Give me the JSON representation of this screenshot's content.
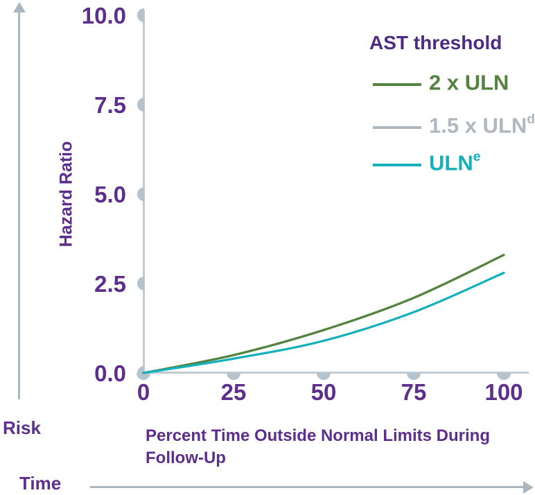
{
  "figure": {
    "risk_label": "Risk",
    "time_label": "Time"
  },
  "colors": {
    "purple": "#5d2e8c",
    "purple-dark": "#4c2b82",
    "axis": "#bfcad2",
    "dot": "#b6c3cd",
    "arrow": "#aab7c1"
  },
  "chart_data": {
    "type": "line",
    "title": "",
    "xlabel": "Percent Time Outside Normal Limits During Follow-Up",
    "xlabel_lines": [
      "Percent Time Outside Normal Limits During",
      "Follow-Up"
    ],
    "ylabel": "Hazard Ratio",
    "xlim": [
      0,
      100
    ],
    "ylim": [
      0,
      10
    ],
    "x_ticks": [
      "0",
      "25",
      "50",
      "75",
      "100"
    ],
    "y_ticks": [
      "10.0",
      "7.5",
      "5.0",
      "2.5",
      "0.0"
    ],
    "grid": false,
    "legend_position": "top-right",
    "legend_title": "AST threshold",
    "x": [
      0,
      25,
      50,
      75,
      100
    ],
    "series": [
      {
        "name": "2 x ULN",
        "sup": "",
        "color": "#53833f",
        "values": [
          0,
          0.5,
          1.2,
          2.1,
          3.3
        ]
      },
      {
        "name": "1.5 x ULN",
        "sup": "d",
        "color": "#b0b7be",
        "values": [
          0,
          0.5,
          1.2,
          2.1,
          3.3
        ]
      },
      {
        "name": "ULN",
        "sup": "e",
        "color": "#14b0bc",
        "values": [
          0,
          0.4,
          0.9,
          1.7,
          2.8
        ]
      }
    ]
  }
}
